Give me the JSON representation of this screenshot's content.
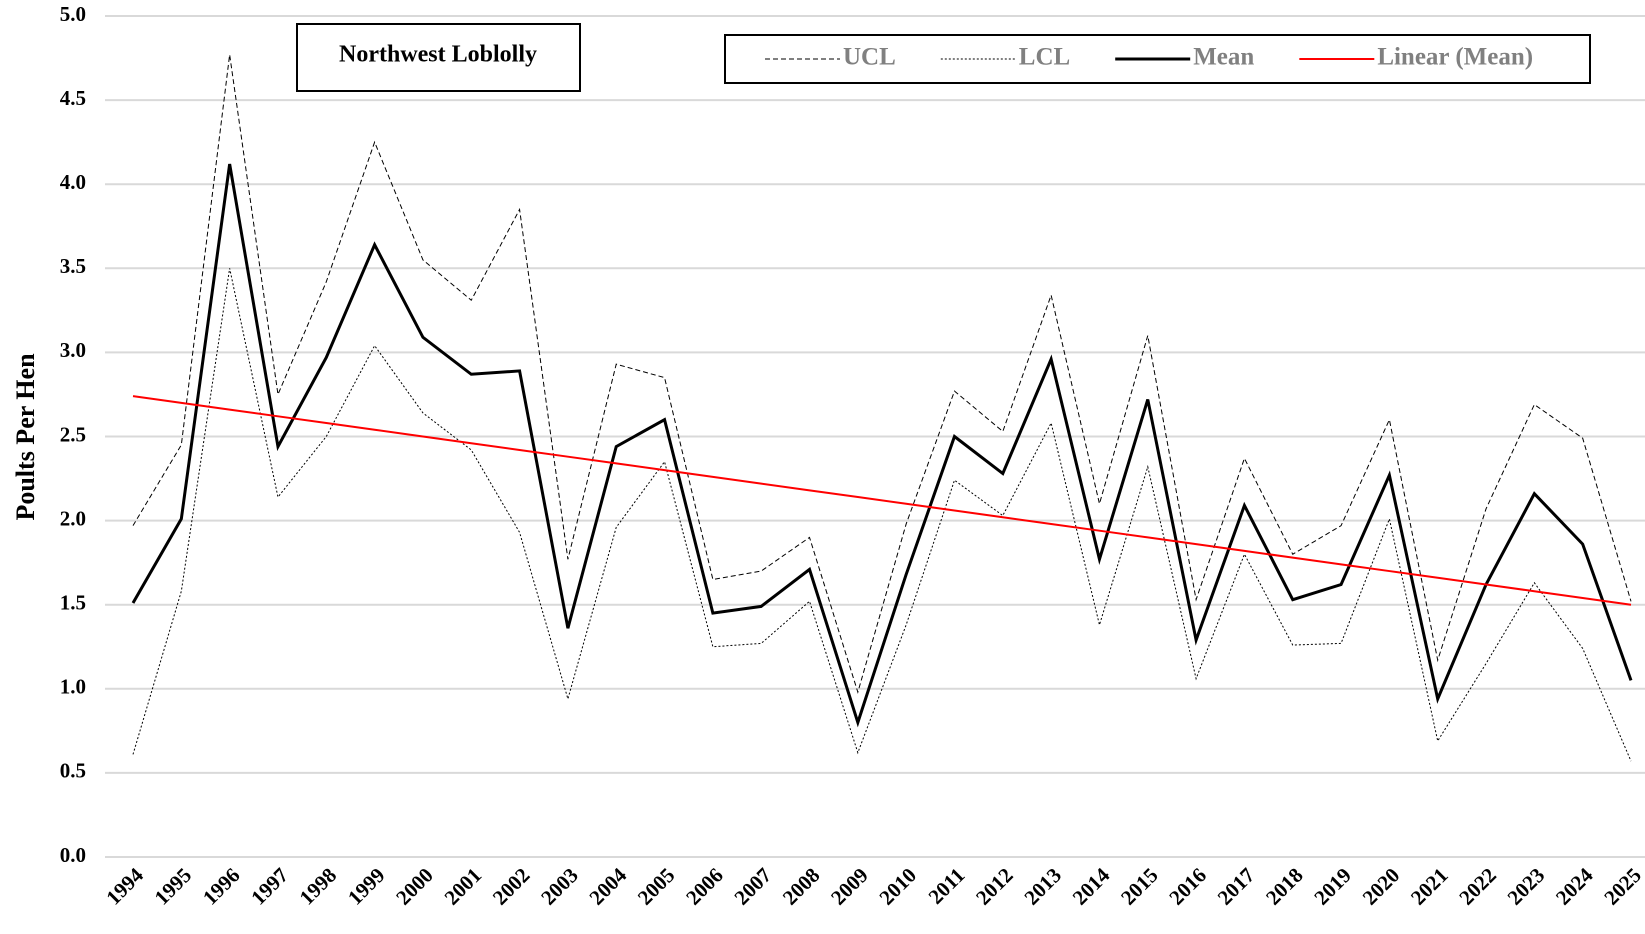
{
  "chart_data": {
    "type": "line",
    "title": "Northwest Loblolly",
    "y_label": "Poults Per Hen",
    "categories": [
      "1994",
      "1995",
      "1996",
      "1997",
      "1998",
      "1999",
      "2000",
      "2001",
      "2002",
      "2003",
      "2004",
      "2005",
      "2006",
      "2007",
      "2008",
      "2009",
      "2010",
      "2011",
      "2012",
      "2013",
      "2014",
      "2015",
      "2016",
      "2017",
      "2018",
      "2019",
      "2020",
      "2021",
      "2022",
      "2023",
      "2024",
      "2025"
    ],
    "series": [
      {
        "name": "UCL",
        "color": "#000000",
        "dash": "dashed",
        "width": 1,
        "values": [
          1.97,
          2.45,
          4.77,
          2.75,
          3.42,
          4.25,
          3.55,
          3.31,
          3.85,
          1.77,
          2.93,
          2.85,
          1.65,
          1.7,
          1.9,
          0.98,
          1.98,
          2.77,
          2.53,
          3.34,
          2.1,
          3.1,
          1.53,
          2.37,
          1.8,
          1.97,
          2.6,
          1.17,
          2.07,
          2.69,
          2.49,
          1.52
        ]
      },
      {
        "name": "LCL",
        "color": "#000000",
        "dash": "dotted",
        "width": 1,
        "values": [
          0.61,
          1.58,
          3.5,
          2.14,
          2.5,
          3.04,
          2.64,
          2.42,
          1.93,
          0.94,
          1.96,
          2.35,
          1.25,
          1.27,
          1.52,
          0.62,
          1.38,
          2.24,
          2.03,
          2.58,
          1.38,
          2.32,
          1.06,
          1.8,
          1.26,
          1.27,
          2.01,
          0.69,
          1.15,
          1.63,
          1.24,
          0.57
        ]
      },
      {
        "name": "Mean",
        "color": "#000000",
        "dash": "solid",
        "width": 3,
        "values": [
          1.51,
          2.01,
          4.12,
          2.44,
          2.97,
          3.64,
          3.09,
          2.87,
          2.89,
          1.36,
          2.44,
          2.6,
          1.45,
          1.49,
          1.71,
          0.8,
          1.68,
          2.5,
          2.28,
          2.96,
          1.77,
          2.72,
          1.29,
          2.09,
          1.53,
          1.62,
          2.27,
          0.94,
          1.62,
          2.16,
          1.86,
          1.05
        ]
      },
      {
        "name": "Linear (Mean)",
        "color": "#ff0000",
        "dash": "solid",
        "width": 2,
        "values": [
          2.74,
          2.7,
          2.66,
          2.62,
          2.58,
          2.54,
          2.5,
          2.46,
          2.42,
          2.38,
          2.34,
          2.3,
          2.26,
          2.22,
          2.18,
          2.14,
          2.1,
          2.06,
          2.02,
          1.98,
          1.94,
          1.9,
          1.86,
          1.82,
          1.78,
          1.74,
          1.7,
          1.66,
          1.62,
          1.58,
          1.54,
          1.5
        ]
      }
    ],
    "ylim": [
      0,
      5
    ],
    "yticks": [
      {
        "value": 0,
        "label": "0.0"
      },
      {
        "value": 0.5,
        "label": "0.5"
      },
      {
        "value": 1,
        "label": "1.0"
      },
      {
        "value": 1.5,
        "label": "1.5"
      },
      {
        "value": 2,
        "label": "2.0"
      },
      {
        "value": 2.5,
        "label": "2.5"
      },
      {
        "value": 3,
        "label": "3.0"
      },
      {
        "value": 3.5,
        "label": "3.5"
      },
      {
        "value": 4,
        "label": "4.0"
      },
      {
        "value": 4.5,
        "label": "4.5"
      },
      {
        "value": 5,
        "label": "5.0"
      }
    ],
    "grid": true,
    "legend": "top"
  }
}
